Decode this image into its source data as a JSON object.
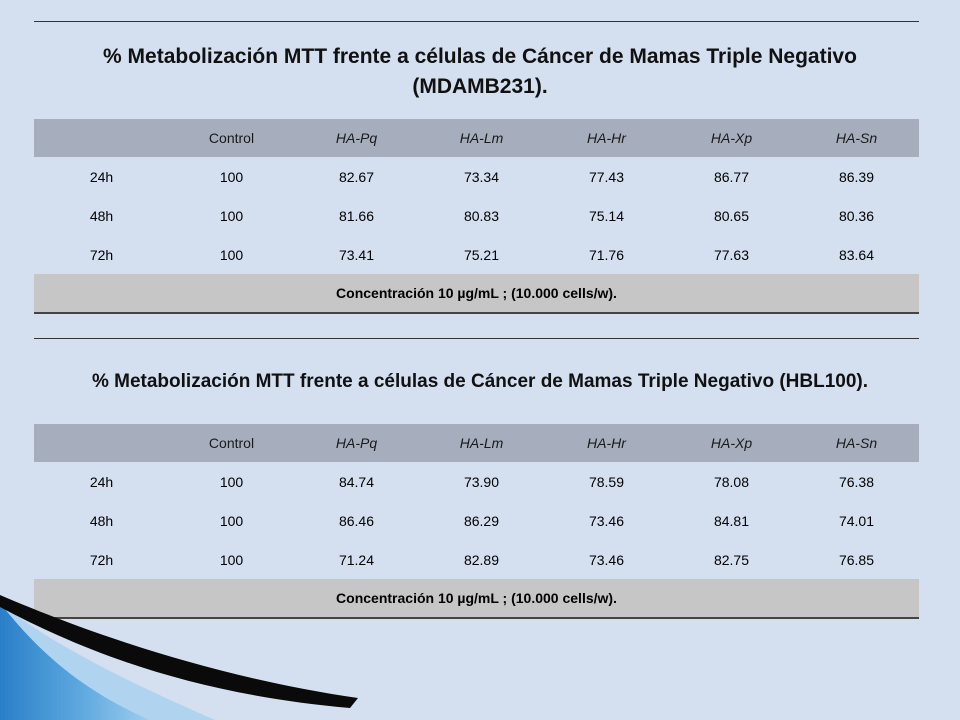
{
  "tables": [
    {
      "title_line1": "% Metabolización MTT frente a células de Cáncer de Mamas Triple Negativo",
      "title_line2": "(MDAMB231).",
      "headers": [
        "",
        "Control",
        "HA-Pq",
        "HA-Lm",
        "HA-Hr",
        "HA-Xp",
        "HA-Sn"
      ],
      "rows": [
        [
          "24h",
          "100",
          "82.67",
          "73.34",
          "77.43",
          "86.77",
          "86.39"
        ],
        [
          "48h",
          "100",
          "81.66",
          "80.83",
          "75.14",
          "80.65",
          "80.36"
        ],
        [
          "72h",
          "100",
          "73.41",
          "75.21",
          "71.76",
          "77.63",
          "83.64"
        ]
      ],
      "footer": "Concentración 10 µg/mL ; (10.000 cells/w)."
    },
    {
      "title_line1": "% Metabolización MTT frente a células de Cáncer de Mamas Triple Negativo (HBL100).",
      "headers": [
        "",
        "Control",
        "HA-Pq",
        "HA-Lm",
        "HA-Hr",
        "HA-Xp",
        "HA-Sn"
      ],
      "rows": [
        [
          "24h",
          "100",
          "84.74",
          "73.90",
          "78.59",
          "78.08",
          "76.38"
        ],
        [
          "48h",
          "100",
          "86.46",
          "86.29",
          "73.46",
          "84.81",
          "74.01"
        ],
        [
          "72h",
          "100",
          "71.24",
          "82.89",
          "73.46",
          "82.75",
          "76.85"
        ]
      ],
      "footer": "Concentración 10 µg/mL ; (10.000 cells/w)."
    }
  ],
  "colors": {
    "background": "#d4dff0",
    "header_fill": "#a6adbd",
    "footer_fill": "#c6c6c6",
    "accent_blue": "#1f6fb8",
    "accent_black": "#0a0a0a"
  }
}
